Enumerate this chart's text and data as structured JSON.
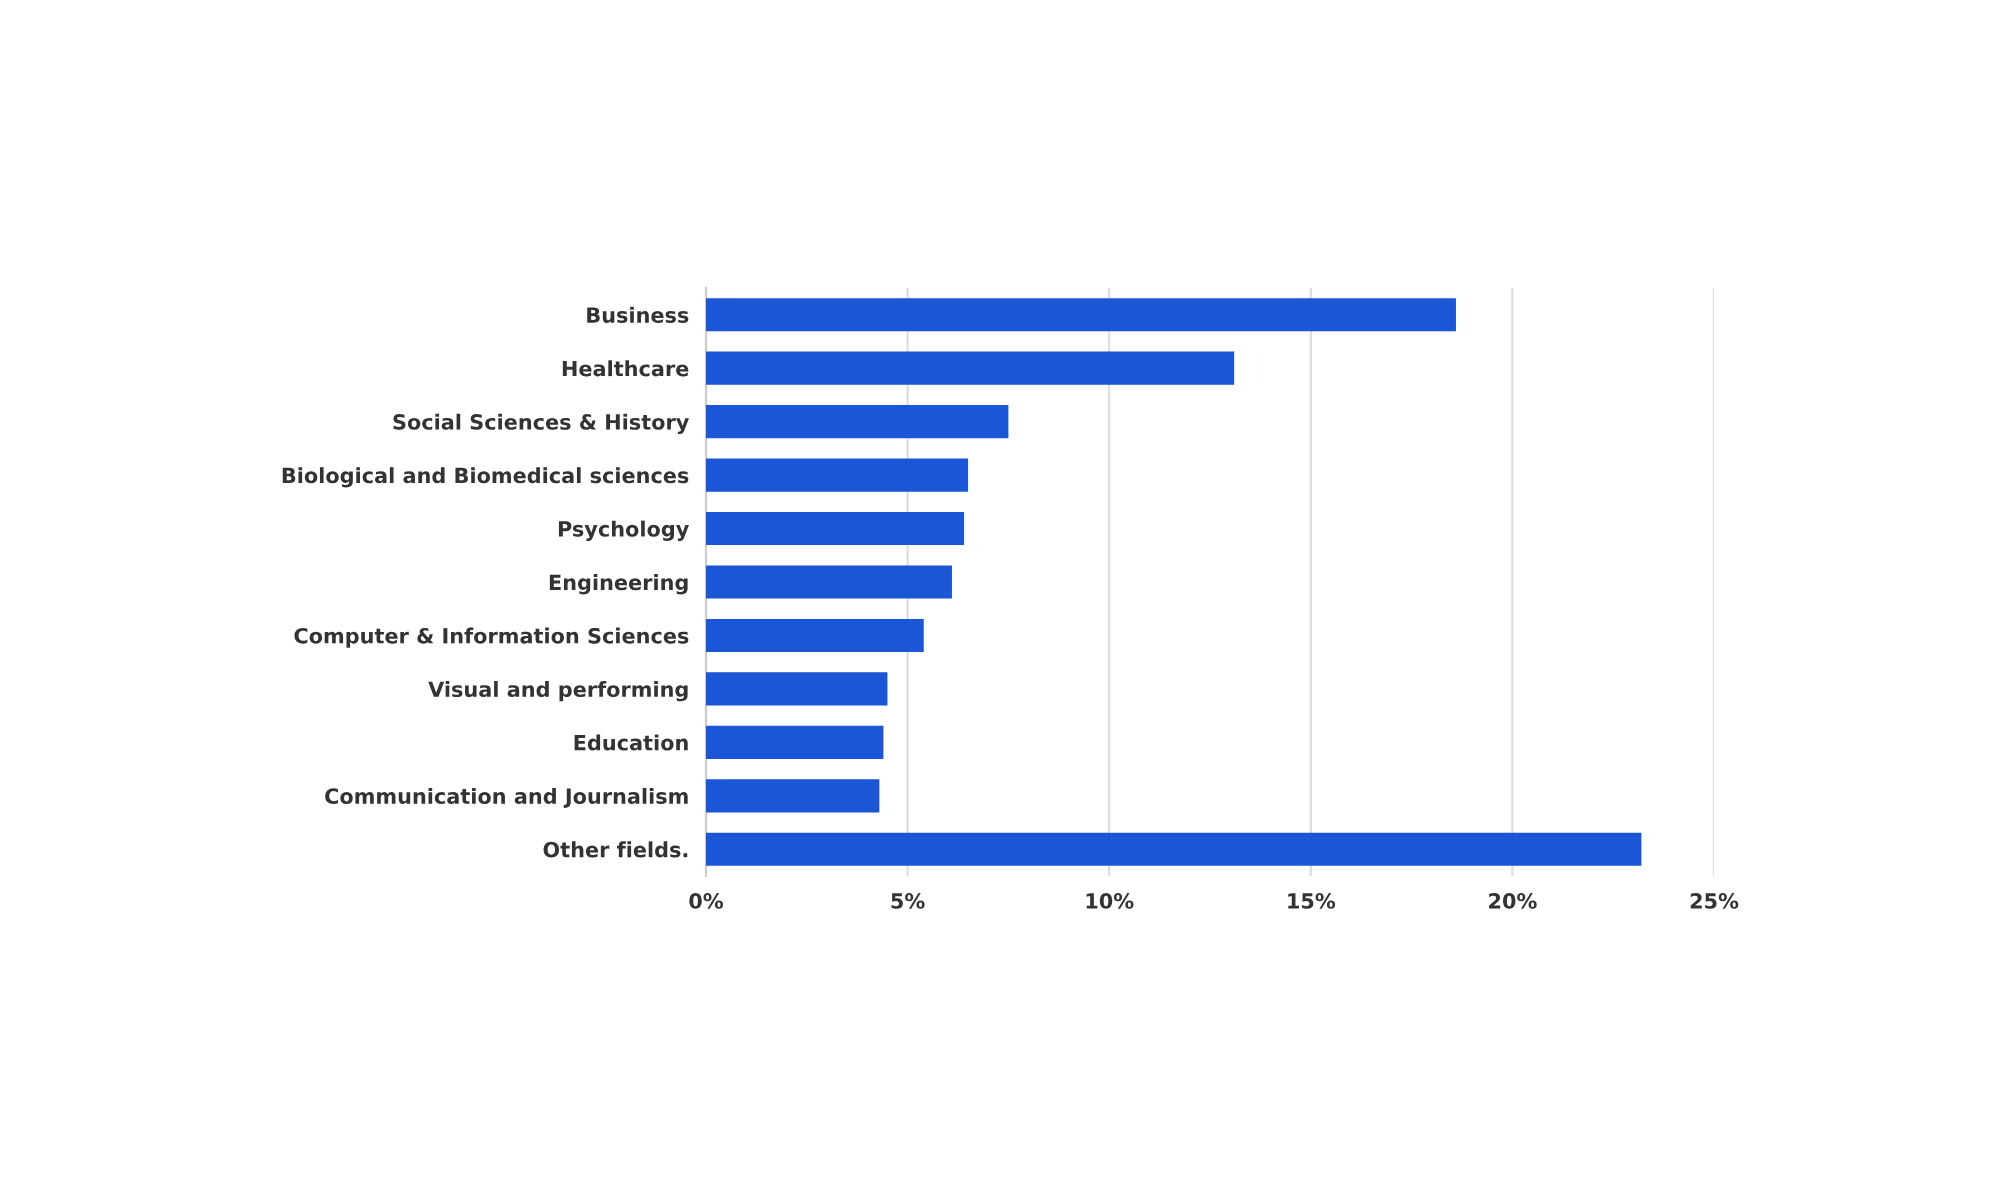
{
  "chart_data": {
    "type": "bar",
    "orientation": "horizontal",
    "categories": [
      "Business",
      "Healthcare",
      "Social Sciences & History",
      "Biological and Biomedical sciences",
      "Psychology",
      "Engineering",
      "Computer & Information Sciences",
      "Visual and performing",
      "Education",
      "Communication and Journalism",
      "Other fields."
    ],
    "values": [
      18.6,
      13.1,
      7.5,
      6.5,
      6.4,
      6.1,
      5.4,
      4.5,
      4.4,
      4.3,
      23.2
    ],
    "color": "#1a56d6",
    "xlim": [
      0,
      25
    ],
    "xticks": [
      {
        "value": 0,
        "label": "0%"
      },
      {
        "value": 5,
        "label": "5%"
      },
      {
        "value": 10,
        "label": "10%"
      },
      {
        "value": 15,
        "label": "15%"
      },
      {
        "value": 20,
        "label": "20%"
      },
      {
        "value": 25,
        "label": "25%"
      }
    ],
    "grid": "x"
  }
}
